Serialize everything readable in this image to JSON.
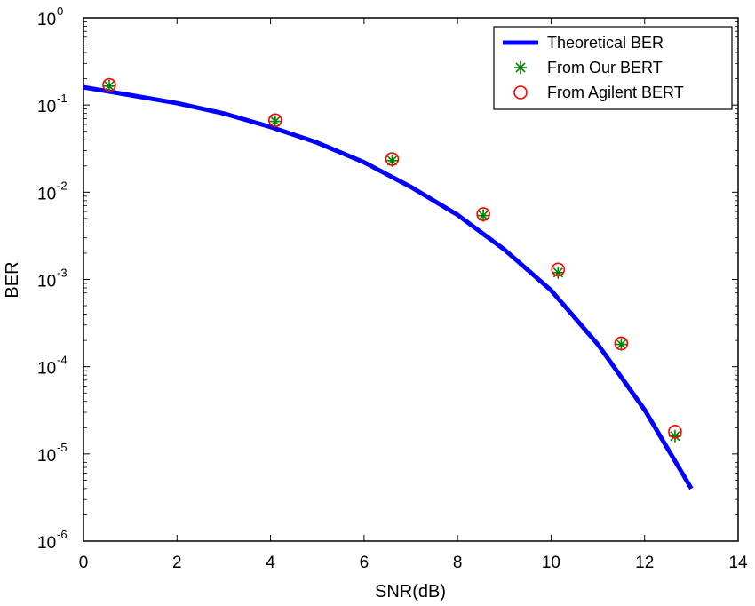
{
  "chart_data": {
    "type": "line",
    "title": "",
    "xlabel": "SNR(dB)",
    "ylabel": "BER",
    "xlim": [
      0,
      14
    ],
    "ylim": [
      1e-06,
      1
    ],
    "yscale": "log",
    "grid": false,
    "legend_position": "top-right",
    "x_ticks": [
      0,
      2,
      4,
      6,
      8,
      10,
      12,
      14
    ],
    "y_ticks": [
      {
        "value": 1,
        "base": "10",
        "exp": "0"
      },
      {
        "value": 0.1,
        "base": "10",
        "exp": "-1"
      },
      {
        "value": 0.01,
        "base": "10",
        "exp": "-2"
      },
      {
        "value": 0.001,
        "base": "10",
        "exp": "-3"
      },
      {
        "value": 0.0001,
        "base": "10",
        "exp": "-4"
      },
      {
        "value": 1e-05,
        "base": "10",
        "exp": "-5"
      },
      {
        "value": 1e-06,
        "base": "10",
        "exp": "-6"
      }
    ],
    "series": [
      {
        "name": "Theoretical BER",
        "kind": "line",
        "color": "#0000ff",
        "x": [
          0,
          1,
          2,
          3,
          4,
          5,
          6,
          7,
          8,
          9,
          10,
          11,
          12,
          13
        ],
        "y": [
          0.16,
          0.13,
          0.105,
          0.08,
          0.056,
          0.037,
          0.022,
          0.0115,
          0.0055,
          0.0022,
          0.00075,
          0.00018,
          3.2e-05,
          4e-06
        ]
      },
      {
        "name": "From Our BERT",
        "kind": "marker",
        "marker": "star",
        "color": "#008000",
        "x": [
          0.55,
          4.1,
          6.6,
          8.55,
          10.15,
          11.5,
          12.65
        ],
        "y": [
          0.165,
          0.065,
          0.023,
          0.0054,
          0.0012,
          0.00018,
          1.6e-05
        ]
      },
      {
        "name": "From Agilent BERT",
        "kind": "marker",
        "marker": "circle",
        "color": "#ff0000",
        "x": [
          0.55,
          4.1,
          6.6,
          8.55,
          10.15,
          11.5,
          12.65
        ],
        "y": [
          0.17,
          0.067,
          0.024,
          0.0056,
          0.0013,
          0.000185,
          1.8e-05
        ]
      }
    ]
  }
}
